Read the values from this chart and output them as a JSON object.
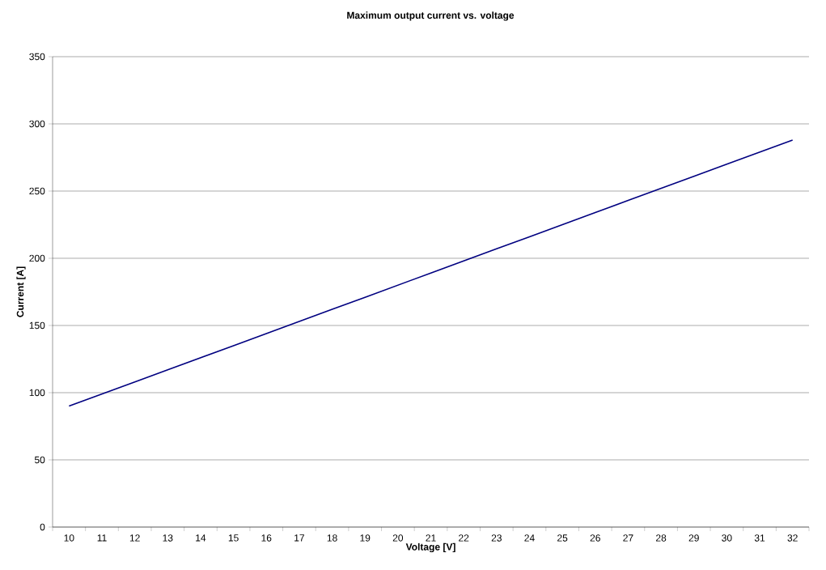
{
  "chart_data": {
    "type": "line",
    "title": "Maximum output current vs. voltage",
    "xlabel": "Voltage [V]",
    "ylabel": "Current [A]",
    "categories": [
      "10",
      "11",
      "12",
      "13",
      "14",
      "15",
      "16",
      "17",
      "18",
      "19",
      "20",
      "21",
      "22",
      "23",
      "24",
      "25",
      "26",
      "27",
      "28",
      "29",
      "30",
      "31",
      "32"
    ],
    "series": [
      {
        "color": "#000080",
        "values": [
          90,
          99,
          108,
          117,
          126,
          135,
          144,
          153,
          162,
          171,
          180,
          189,
          198,
          207,
          216,
          225,
          234,
          243,
          252,
          261,
          270,
          279,
          288
        ]
      }
    ],
    "ylim": [
      0,
      350
    ],
    "yticks": [
      0,
      50,
      100,
      150,
      200,
      250,
      300,
      350
    ],
    "grid": "y",
    "marker": "none",
    "line_style": "solid"
  }
}
